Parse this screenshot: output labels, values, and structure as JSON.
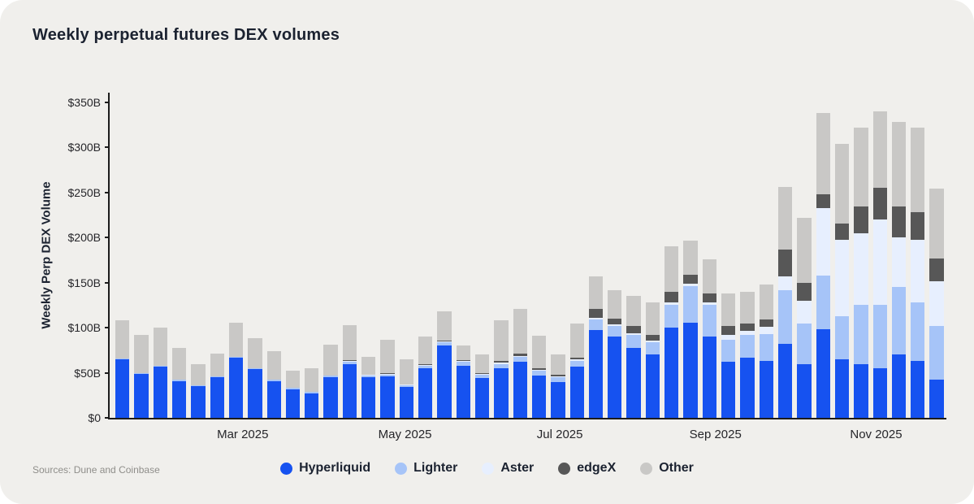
{
  "theme": {
    "card_background": "#f0efec",
    "axis_color": "#1c1c1c",
    "text_color": "#1b2230",
    "muted_text_color": "#8f8e8a"
  },
  "header": {
    "title": "Weekly perpetual futures DEX volumes"
  },
  "footer": {
    "sources": "Sources: Dune and Coinbase"
  },
  "chart_data": {
    "type": "bar",
    "stacked": true,
    "title": "Weekly perpetual futures DEX volumes",
    "xlabel": "",
    "ylabel": "Weekly Perp DEX Volume",
    "ylim": [
      0,
      350
    ],
    "y_unit": "billions USD",
    "grid": false,
    "legend_position": "bottom-center",
    "y_ticks": [
      "$0",
      "$50B",
      "$100B",
      "$150B",
      "$200B",
      "$250B",
      "$300B",
      "$350B"
    ],
    "x_ticks": [
      {
        "label": "Mar 2025",
        "position": 0.159
      },
      {
        "label": "May 2025",
        "position": 0.353
      },
      {
        "label": "Jul 2025",
        "position": 0.538
      },
      {
        "label": "Sep 2025",
        "position": 0.724
      },
      {
        "label": "Nov 2025",
        "position": 0.916
      }
    ],
    "x_description": "44 weekly bars from early Feb 2025 to late Nov 2025",
    "series": [
      {
        "name": "Hyperliquid",
        "color": "#1652f0",
        "values": [
          65,
          49,
          57,
          41,
          35,
          45,
          67,
          54,
          41,
          32,
          27,
          45,
          60,
          45,
          46,
          34,
          55,
          80,
          58,
          44,
          55,
          62,
          47,
          40,
          57,
          97,
          90,
          78,
          70,
          100,
          106,
          90,
          62,
          67,
          63,
          82,
          60,
          98,
          65,
          60,
          55,
          70,
          63,
          42
        ]
      },
      {
        "name": "Lighter",
        "color": "#a6c4f8",
        "values": [
          1,
          1,
          1,
          1,
          1,
          1,
          1,
          1,
          1,
          1,
          2,
          2,
          2,
          2,
          2,
          2,
          3,
          4,
          4,
          4,
          5,
          6,
          5,
          5,
          6,
          12,
          12,
          14,
          14,
          25,
          40,
          35,
          25,
          25,
          30,
          60,
          45,
          60,
          48,
          65,
          70,
          75,
          65,
          60
        ]
      },
      {
        "name": "Aster",
        "color": "#e7effe",
        "values": [
          0,
          0,
          0,
          0,
          0,
          0,
          0,
          0,
          0,
          0,
          0,
          0,
          1,
          1,
          1,
          1,
          1,
          1,
          1,
          1,
          1,
          1,
          1,
          1,
          2,
          2,
          2,
          2,
          2,
          3,
          3,
          3,
          5,
          5,
          8,
          15,
          25,
          75,
          85,
          80,
          95,
          55,
          70,
          50
        ]
      },
      {
        "name": "edgeX",
        "color": "#575757",
        "values": [
          0,
          0,
          0,
          0,
          0,
          0,
          0,
          0,
          0,
          0,
          0,
          0,
          1,
          0,
          1,
          0,
          1,
          1,
          1,
          1,
          2,
          2,
          2,
          2,
          2,
          10,
          6,
          8,
          6,
          12,
          10,
          10,
          10,
          8,
          8,
          30,
          20,
          15,
          18,
          30,
          35,
          35,
          30,
          25
        ]
      },
      {
        "name": "Other",
        "color": "#c9c8c6",
        "values": [
          42,
          42,
          42,
          36,
          24,
          25,
          38,
          33,
          32,
          19,
          26,
          34,
          39,
          20,
          37,
          28,
          30,
          32,
          16,
          20,
          45,
          50,
          36,
          22,
          38,
          36,
          32,
          33,
          36,
          50,
          38,
          38,
          36,
          35,
          39,
          69,
          72,
          90,
          88,
          87,
          85,
          93,
          94,
          77
        ]
      }
    ]
  }
}
